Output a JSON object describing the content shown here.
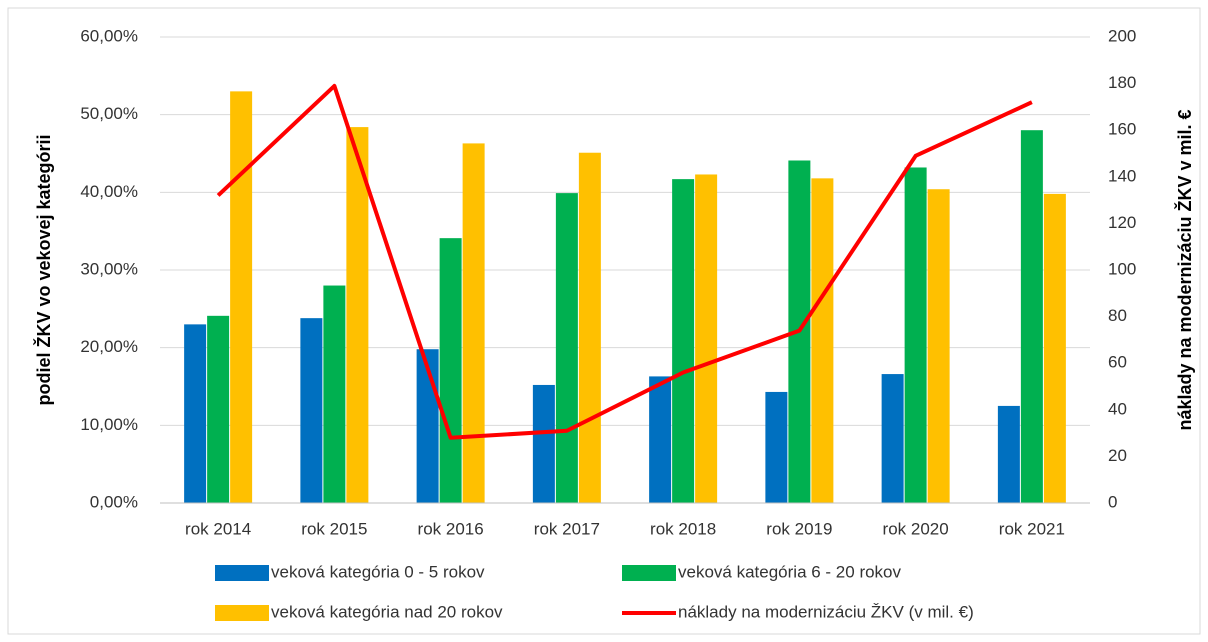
{
  "chart_data": {
    "type": "bar",
    "categories": [
      "rok 2014",
      "rok 2015",
      "rok 2016",
      "rok 2017",
      "rok 2018",
      "rok 2019",
      "rok 2020",
      "rok 2021"
    ],
    "series": [
      {
        "name": "veková kategória 0 - 5 rokov",
        "color": "#0070c0",
        "values": [
          23.0,
          23.8,
          19.8,
          15.2,
          16.3,
          14.3,
          16.6,
          12.5
        ]
      },
      {
        "name": "veková kategória 6 - 20 rokov",
        "color": "#00b050",
        "values": [
          24.1,
          28.0,
          34.1,
          39.9,
          41.7,
          44.1,
          43.2,
          48.0
        ]
      },
      {
        "name": "veková kategória nad 20 rokov",
        "color": "#ffc000",
        "values": [
          53.0,
          48.4,
          46.3,
          45.1,
          42.3,
          41.8,
          40.4,
          39.8
        ]
      },
      {
        "name": "náklady na modernizáciu ŽKV (v mil. €)",
        "color": "#ff0000",
        "type": "line",
        "axis": "y2",
        "values": [
          132,
          179,
          28,
          31,
          56,
          74,
          149,
          172
        ]
      }
    ],
    "ylabel": "podiel ŽKV vo vekovej kategórii",
    "y2label": "náklady na modernizáciu ŽKV v mil. €",
    "ylim": [
      0,
      60
    ],
    "yticks": [
      {
        "value": 0,
        "label": "0,00%"
      },
      {
        "value": 10,
        "label": "10,00%"
      },
      {
        "value": 20,
        "label": "20,00%"
      },
      {
        "value": 30,
        "label": "30,00%"
      },
      {
        "value": 40,
        "label": "40,00%"
      },
      {
        "value": 50,
        "label": "50,00%"
      },
      {
        "value": 60,
        "label": "60,00%"
      }
    ],
    "y2lim": [
      0,
      200
    ],
    "y2ticks": [
      0,
      20,
      40,
      60,
      80,
      100,
      120,
      140,
      160,
      180,
      200
    ],
    "grid": true,
    "legend": "bottom"
  }
}
